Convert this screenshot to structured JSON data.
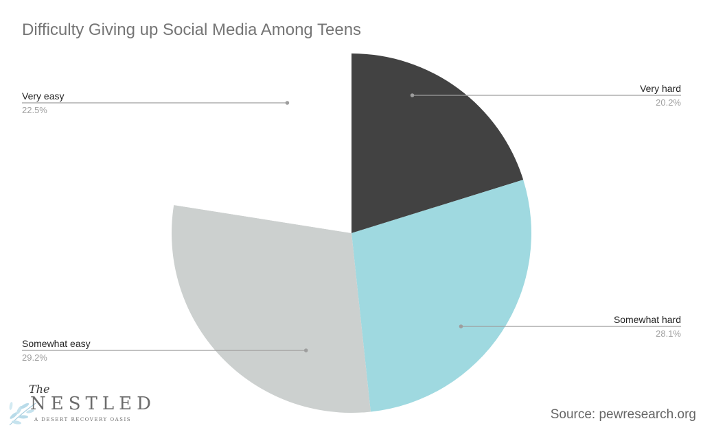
{
  "chart_data": {
    "type": "pie",
    "title": "Difficulty Giving up Social Media Among Teens",
    "slices": [
      {
        "label": "Very hard",
        "percent_label": "20.2%",
        "value": 20.2,
        "color": "#424242"
      },
      {
        "label": "Somewhat hard",
        "percent_label": "28.1%",
        "value": 28.1,
        "color": "#9fd9e0"
      },
      {
        "label": "Somewhat easy",
        "percent_label": "29.2%",
        "value": 29.2,
        "color": "#ccd0cf"
      },
      {
        "label": "Very easy",
        "percent_label": "22.5%",
        "value": 22.5,
        "color": "#ffffff"
      }
    ],
    "start": "12 o'clock",
    "direction": "clockwise"
  },
  "logo": {
    "the": "The",
    "name": "NESTLED",
    "tagline": "A DESERT RECOVERY OASIS"
  },
  "source": "Source: pewresearch.org"
}
